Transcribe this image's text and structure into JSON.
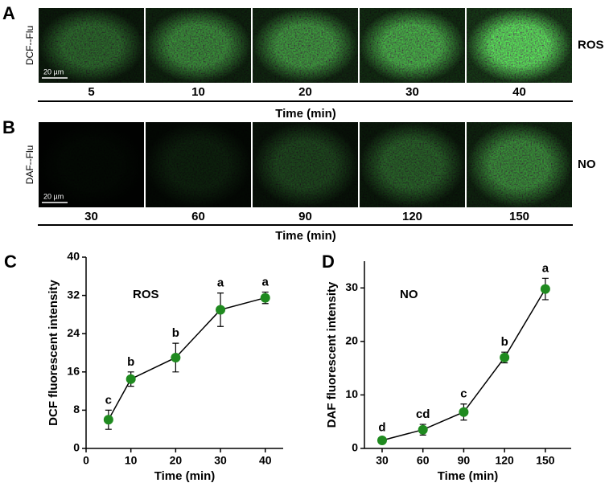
{
  "panel_a": {
    "label": "A",
    "ylabel": "DCF--Flu",
    "side_label": "ROS",
    "scale_bar": "20 µm",
    "times": [
      "5",
      "10",
      "20",
      "30",
      "40"
    ],
    "xlabel": "Time (min)"
  },
  "panel_b": {
    "label": "B",
    "ylabel": "DAF--Flu",
    "side_label": "NO",
    "scale_bar": "20 µm",
    "times": [
      "30",
      "60",
      "90",
      "120",
      "150"
    ],
    "xlabel": "Time (min)"
  },
  "chart_data": [
    {
      "type": "line",
      "label": "C",
      "annotation": "ROS",
      "xlabel": "Time (min)",
      "ylabel": "DCF fluorescent intensity",
      "x": [
        5,
        10,
        20,
        30,
        40
      ],
      "values": [
        6,
        14.5,
        19,
        29,
        31.5
      ],
      "errors": [
        2,
        1.5,
        3,
        3.5,
        1.2
      ],
      "group_labels": [
        "c",
        "b",
        "b",
        "a",
        "a"
      ],
      "color": "#1f8a1f",
      "xlim": [
        0,
        44
      ],
      "xticks": [
        0,
        10,
        20,
        30,
        40
      ],
      "ylim": [
        0,
        40
      ],
      "yticks": [
        0,
        8,
        16,
        24,
        32,
        40
      ]
    },
    {
      "type": "line",
      "label": "D",
      "annotation": "NO",
      "xlabel": "Time (min)",
      "ylabel": "DAF fluorescent intensity",
      "x": [
        30,
        60,
        90,
        120,
        150
      ],
      "values": [
        1.5,
        3.5,
        6.8,
        17,
        29.8
      ],
      "errors": [
        0.5,
        1,
        1.5,
        1,
        2
      ],
      "group_labels": [
        "d",
        "cd",
        "c",
        "b",
        "a"
      ],
      "color": "#1f8a1f",
      "xlim": [
        17,
        169
      ],
      "xticks": [
        30,
        60,
        90,
        120,
        150
      ],
      "ylim": [
        0,
        35
      ],
      "yticks": [
        0,
        10,
        20,
        30
      ]
    }
  ]
}
